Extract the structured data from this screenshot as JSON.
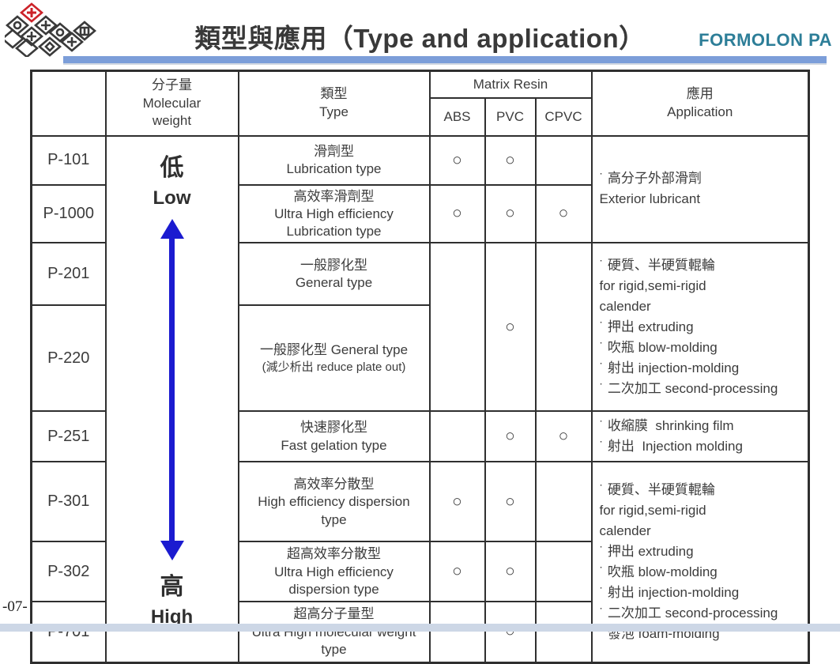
{
  "page": {
    "title": "類型與應用（Type and application）",
    "brand": "FORMOLON PA",
    "page_number": "-07-",
    "colors": {
      "brand_teal": "#2d7e98",
      "rule_blue": "#7c9ed9",
      "arrow_blue": "#1b1bd0",
      "footer_bar": "#cdd7e6",
      "logo_red": "#cc2229"
    },
    "logo_name": "formosa-plastics-group-logo"
  },
  "table": {
    "headers": {
      "code": "",
      "molecular_weight_zh": "分子量",
      "molecular_weight_en": "Molecular weight",
      "type_zh": "類型",
      "type_en": "Type",
      "matrix_resin": "Matrix Resin",
      "resins": [
        "ABS",
        "PVC",
        "CPVC"
      ],
      "application_zh": "應用",
      "application_en": "Application"
    },
    "mw_scale": {
      "low_zh": "低",
      "low_en": "Low",
      "high_zh": "高",
      "high_en": "High"
    },
    "rows": [
      {
        "code": "P-101",
        "type_zh": "滑劑型",
        "type_en": "Lubrication type",
        "abs": "○",
        "pvc": "○",
        "cpvc": ""
      },
      {
        "code": "P-1000",
        "type_zh": "高效率滑劑型",
        "type_en": "Ultra High efficiency Lubrication type",
        "abs": "○",
        "pvc": "○",
        "cpvc": "○"
      },
      {
        "code": "P-201",
        "type_zh": "一般膠化型",
        "type_en": "General type",
        "abs": "",
        "pvc": "○",
        "cpvc": ""
      },
      {
        "code": "P-220",
        "type_zh": "一般膠化型 General type",
        "type_en": "(減少析出 reduce plate out)"
      },
      {
        "code": "P-251",
        "type_zh": "快速膠化型",
        "type_en": "Fast gelation type",
        "abs": "",
        "pvc": "○",
        "cpvc": "○"
      },
      {
        "code": "P-301",
        "type_zh": "高效率分散型",
        "type_en": "High efficiency dispersion type",
        "abs": "○",
        "pvc": "○",
        "cpvc": ""
      },
      {
        "code": "P-302",
        "type_zh": "超高效率分散型",
        "type_en": "Ultra High efficiency dispersion type",
        "abs": "○",
        "pvc": "○",
        "cpvc": ""
      },
      {
        "code": "P-701",
        "type_zh": "超高分子量型",
        "type_en": "Ultra High molecular weight type",
        "abs": "",
        "pvc": "○",
        "cpvc": ""
      }
    ],
    "applications": {
      "lubricant": {
        "lines": [
          "˙ 高分子外部滑劑",
          "Exterior lubricant"
        ]
      },
      "general": {
        "lines": [
          "˙ 硬質、半硬質輥輪",
          "for rigid,semi-rigid",
          "calender",
          "˙ 押出 extruding",
          "˙ 吹瓶 blow-molding",
          "˙ 射出 injection-molding",
          "˙ 二次加工 second-processing"
        ]
      },
      "fast_gelation": {
        "lines": [
          "˙ 收縮膜  shrinking film",
          "˙ 射出  Injection molding"
        ]
      },
      "dispersion": {
        "lines": [
          "˙ 硬質、半硬質輥輪",
          "for rigid,semi-rigid",
          "calender",
          "˙ 押出 extruding",
          "˙ 吹瓶 blow-molding",
          "˙ 射出 injection-molding",
          "˙ 二次加工 second-processing",
          "˙ 發泡 foam-molding"
        ]
      }
    }
  }
}
